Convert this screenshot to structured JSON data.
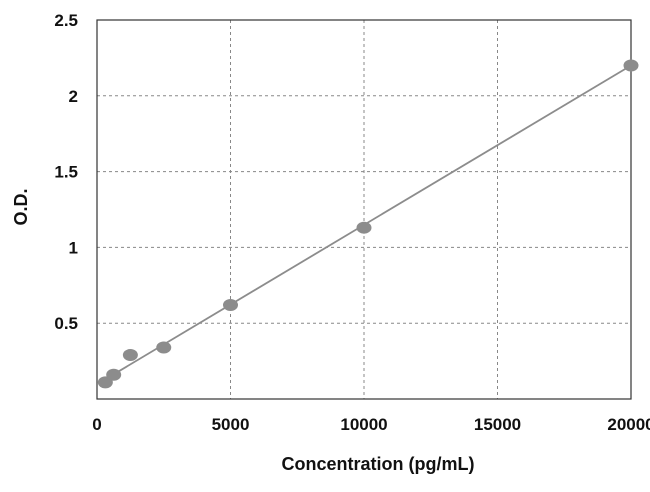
{
  "chart_data": {
    "type": "scatter",
    "title": "",
    "xlabel": "Concentration (pg/mL)",
    "ylabel": "O.D.",
    "xlim": [
      0,
      20000
    ],
    "ylim": [
      0,
      2.5
    ],
    "x_ticks": [
      0,
      5000,
      10000,
      15000,
      20000
    ],
    "x_tick_labels": [
      "0",
      "5000",
      "10000",
      "15000",
      "20000"
    ],
    "y_ticks": [
      0.5,
      1,
      1.5,
      2,
      2.5
    ],
    "y_tick_labels": [
      "0.5",
      "1",
      "1.5",
      "2",
      "2.5"
    ],
    "grid": true,
    "legend": "none",
    "series": [
      {
        "points": [
          {
            "x": 312.5,
            "y": 0.11
          },
          {
            "x": 625,
            "y": 0.16
          },
          {
            "x": 1250,
            "y": 0.29
          },
          {
            "x": 2500,
            "y": 0.34
          },
          {
            "x": 5000,
            "y": 0.62
          },
          {
            "x": 10000,
            "y": 1.13
          },
          {
            "x": 20000,
            "y": 2.2
          }
        ],
        "trendline": {
          "x": [
            312.5,
            20000
          ],
          "y": [
            0.13,
            2.2
          ]
        }
      }
    ],
    "colors": {
      "marker": "#8c8c8c",
      "trendline": "#8c8c8c",
      "grid": "#888888",
      "frame": "#333333"
    }
  }
}
